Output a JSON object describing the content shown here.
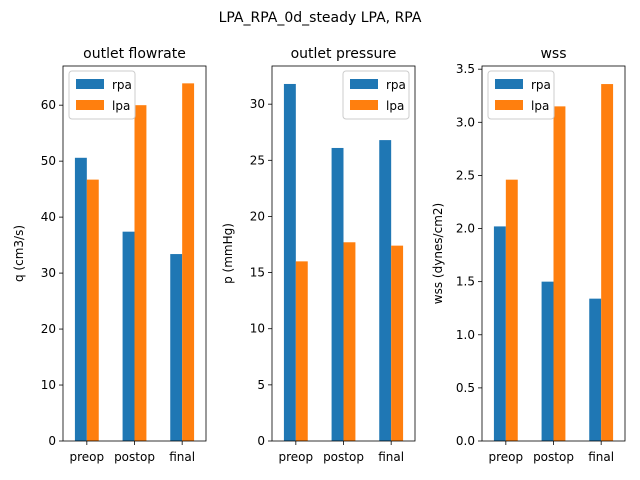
{
  "figure": {
    "suptitle": "LPA_RPA_0d_steady LPA, RPA"
  },
  "colors": {
    "rpa": "#1f77b4",
    "lpa": "#ff7f0e"
  },
  "chart_data": [
    {
      "type": "bar",
      "title": "outlet flowrate",
      "xlabel": "",
      "ylabel": "q (cm3/s)",
      "categories": [
        "preop",
        "postop",
        "final"
      ],
      "ylim": [
        0,
        67
      ],
      "yticks": [
        0,
        10,
        20,
        30,
        40,
        50,
        60
      ],
      "ytick_labels": [
        "0",
        "10",
        "20",
        "30",
        "40",
        "50",
        "60"
      ],
      "legend": "top-left",
      "series": [
        {
          "name": "rpa",
          "values": [
            50.6,
            37.4,
            33.4
          ]
        },
        {
          "name": "lpa",
          "values": [
            46.7,
            60.0,
            63.9
          ]
        }
      ]
    },
    {
      "type": "bar",
      "title": "outlet pressure",
      "xlabel": "",
      "ylabel": "p (mmHg)",
      "categories": [
        "preop",
        "postop",
        "final"
      ],
      "ylim": [
        0,
        33.4
      ],
      "yticks": [
        0,
        5,
        10,
        15,
        20,
        25,
        30
      ],
      "ytick_labels": [
        "0",
        "5",
        "10",
        "15",
        "20",
        "25",
        "30"
      ],
      "legend": "top-right",
      "series": [
        {
          "name": "rpa",
          "values": [
            31.8,
            26.1,
            26.8
          ]
        },
        {
          "name": "lpa",
          "values": [
            16.0,
            17.7,
            17.4
          ]
        }
      ]
    },
    {
      "type": "bar",
      "title": "wss",
      "xlabel": "",
      "ylabel": "wss (dynes/cm2)",
      "categories": [
        "preop",
        "postop",
        "final"
      ],
      "ylim": [
        0,
        3.53
      ],
      "yticks": [
        0,
        0.5,
        1.0,
        1.5,
        2.0,
        2.5,
        3.0,
        3.5
      ],
      "ytick_labels": [
        "0.0",
        "0.5",
        "1.0",
        "1.5",
        "2.0",
        "2.5",
        "3.0",
        "3.5"
      ],
      "legend": "top-left",
      "series": [
        {
          "name": "rpa",
          "values": [
            2.02,
            1.5,
            1.34
          ]
        },
        {
          "name": "lpa",
          "values": [
            2.46,
            3.15,
            3.36
          ]
        }
      ]
    }
  ]
}
